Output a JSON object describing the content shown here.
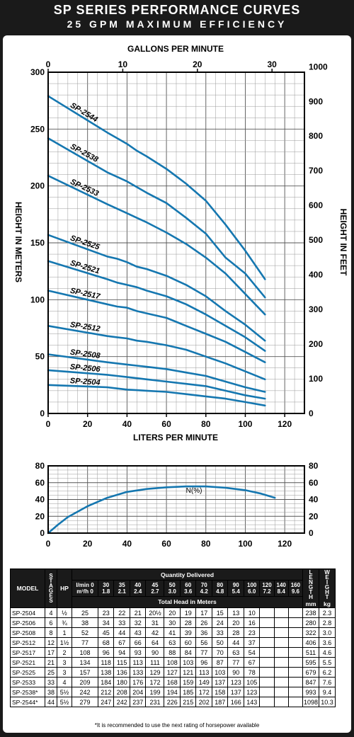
{
  "title": "SP SERIES PERFORMANCE CURVES",
  "subtitle": "25 GPM MAXIMUM EFFICIENCY",
  "chart_data": [
    {
      "type": "line",
      "x_top_label": "GALLONS PER MINUTE",
      "x_top_ticks": [
        "0",
        "10",
        "20",
        "30"
      ],
      "x_label": "LITERS PER MINUTE",
      "x_ticks": [
        "0",
        "20",
        "40",
        "60",
        "80",
        "100",
        "120"
      ],
      "xlim": [
        0,
        130
      ],
      "y_label": "HEIGHT IN METERS",
      "y_ticks": [
        "0",
        "50",
        "100",
        "150",
        "200",
        "250",
        "300"
      ],
      "ylim": [
        0,
        300
      ],
      "y_right_label": "HEIGHT IN FEET",
      "y_right_ticks": [
        "0",
        "100",
        "200",
        "300",
        "400",
        "500",
        "600",
        "700",
        "800",
        "900",
        "1000"
      ],
      "grid": true,
      "x": [
        0,
        30,
        35,
        40,
        45,
        50,
        60,
        70,
        80,
        90,
        100,
        110
      ],
      "series": [
        {
          "name": "SP-2544",
          "values": [
            279,
            247,
            242,
            237,
            231,
            226,
            215,
            202,
            187,
            166,
            143,
            118
          ]
        },
        {
          "name": "SP-2538",
          "values": [
            242,
            212,
            208,
            204,
            199,
            194,
            185,
            172,
            158,
            137,
            123,
            102
          ]
        },
        {
          "name": "SP-2533",
          "values": [
            209,
            184,
            180,
            176,
            172,
            168,
            159,
            149,
            137,
            123,
            105,
            87
          ]
        },
        {
          "name": "SP-2525",
          "values": [
            157,
            138,
            136,
            133,
            129,
            127,
            121,
            113,
            103,
            90,
            78,
            64
          ]
        },
        {
          "name": "SP-2521",
          "values": [
            134,
            118,
            115,
            113,
            111,
            108,
            103,
            96,
            87,
            77,
            67,
            55
          ]
        },
        {
          "name": "SP-2517",
          "values": [
            108,
            96,
            94,
            93,
            90,
            88,
            84,
            77,
            70,
            63,
            54,
            45
          ]
        },
        {
          "name": "SP-2512",
          "values": [
            77,
            68,
            67,
            66,
            64,
            63,
            60,
            56,
            50,
            44,
            37,
            30
          ]
        },
        {
          "name": "SP-2508",
          "values": [
            52,
            45,
            44,
            43,
            42,
            41,
            39,
            36,
            33,
            28,
            23,
            19
          ]
        },
        {
          "name": "SP-2506",
          "values": [
            38,
            34,
            33,
            32,
            31,
            30,
            28,
            26,
            24,
            20,
            16,
            13
          ]
        },
        {
          "name": "SP-2504",
          "values": [
            25,
            23,
            22,
            21,
            20.5,
            20,
            19,
            17,
            15,
            13,
            10,
            7
          ]
        }
      ],
      "line_color": "#1577b0"
    },
    {
      "type": "line",
      "x_ticks": [
        "0",
        "20",
        "40",
        "60",
        "80",
        "100",
        "120"
      ],
      "xlim": [
        0,
        130
      ],
      "y_ticks": [
        "0",
        "20",
        "40",
        "60",
        "80"
      ],
      "y_right_ticks": [
        "0",
        "20",
        "40",
        "60",
        "80"
      ],
      "ylim": [
        0,
        80
      ],
      "grid": true,
      "series_label": "N(%)",
      "x": [
        0,
        5,
        10,
        20,
        30,
        40,
        50,
        60,
        70,
        80,
        90,
        100,
        108,
        115
      ],
      "values": [
        0,
        10,
        19,
        32,
        42,
        49,
        52.5,
        54.5,
        55.5,
        55.5,
        54,
        51,
        47,
        42
      ]
    }
  ],
  "table": {
    "headers": {
      "model": "MODEL",
      "stages": "STAGES",
      "hp": "HP",
      "quantity": "Quantity Delivered",
      "lmin": "l/min",
      "m3h": "m³/h",
      "total_head": "Total Head in Meters",
      "length": "LENGTH",
      "length_unit": "mm",
      "weight": "WEIGHT",
      "weight_unit": "kg"
    },
    "flow_lmin": [
      "0",
      "30",
      "35",
      "40",
      "45",
      "50",
      "60",
      "70",
      "80",
      "90",
      "100",
      "120",
      "140",
      "160"
    ],
    "flow_m3h": [
      "0",
      "1.8",
      "2.1",
      "2.4",
      "2.7",
      "3.0",
      "3.6",
      "4.2",
      "4.8",
      "5.4",
      "6.0",
      "7.2",
      "8.4",
      "9.6"
    ],
    "rows": [
      {
        "model": "SP-2504",
        "stages": "4",
        "hp": "½",
        "heads": [
          "25",
          "23",
          "22",
          "21",
          "20½",
          "20",
          "19",
          "17",
          "15",
          "13",
          "10",
          "",
          "",
          ""
        ],
        "length": "238",
        "weight": "2.3"
      },
      {
        "model": "SP-2506",
        "stages": "6",
        "hp": "¾",
        "heads": [
          "38",
          "34",
          "33",
          "32",
          "31",
          "30",
          "28",
          "26",
          "24",
          "20",
          "16",
          "",
          "",
          ""
        ],
        "length": "280",
        "weight": "2.8"
      },
      {
        "model": "SP-2508",
        "stages": "8",
        "hp": "1",
        "heads": [
          "52",
          "45",
          "44",
          "43",
          "42",
          "41",
          "39",
          "36",
          "33",
          "28",
          "23",
          "",
          "",
          ""
        ],
        "length": "322",
        "weight": "3.0"
      },
      {
        "model": "SP-2512",
        "stages": "12",
        "hp": "1½",
        "heads": [
          "77",
          "68",
          "67",
          "66",
          "64",
          "63",
          "60",
          "56",
          "50",
          "44",
          "37",
          "",
          "",
          ""
        ],
        "length": "406",
        "weight": "3.6"
      },
      {
        "model": "SP-2517",
        "stages": "17",
        "hp": "2",
        "heads": [
          "108",
          "96",
          "94",
          "93",
          "90",
          "88",
          "84",
          "77",
          "70",
          "63",
          "54",
          "",
          "",
          ""
        ],
        "length": "511",
        "weight": "4.6"
      },
      {
        "model": "SP-2521",
        "stages": "21",
        "hp": "3",
        "heads": [
          "134",
          "118",
          "115",
          "113",
          "111",
          "108",
          "103",
          "96",
          "87",
          "77",
          "67",
          "",
          "",
          ""
        ],
        "length": "595",
        "weight": "5.5"
      },
      {
        "model": "SP-2525",
        "stages": "25",
        "hp": "3",
        "heads": [
          "157",
          "138",
          "136",
          "133",
          "129",
          "127",
          "121",
          "113",
          "103",
          "90",
          "78",
          "",
          "",
          ""
        ],
        "length": "679",
        "weight": "6.2"
      },
      {
        "model": "SP-2533",
        "stages": "33",
        "hp": "4",
        "heads": [
          "209",
          "184",
          "180",
          "176",
          "172",
          "168",
          "159",
          "149",
          "137",
          "123",
          "105",
          "",
          "",
          ""
        ],
        "length": "847",
        "weight": "7.6"
      },
      {
        "model": "SP-2538*",
        "stages": "38",
        "hp": "5½",
        "heads": [
          "242",
          "212",
          "208",
          "204",
          "199",
          "194",
          "185",
          "172",
          "158",
          "137",
          "123",
          "",
          "",
          ""
        ],
        "length": "993",
        "weight": "9.4"
      },
      {
        "model": "SP-2544*",
        "stages": "44",
        "hp": "5½",
        "heads": [
          "279",
          "247",
          "242",
          "237",
          "231",
          "226",
          "215",
          "202",
          "187",
          "166",
          "143",
          "",
          "",
          ""
        ],
        "length": "1098",
        "weight": "10.3"
      }
    ],
    "footnote": "*It is recommended to use the next rating of horsepower available"
  }
}
